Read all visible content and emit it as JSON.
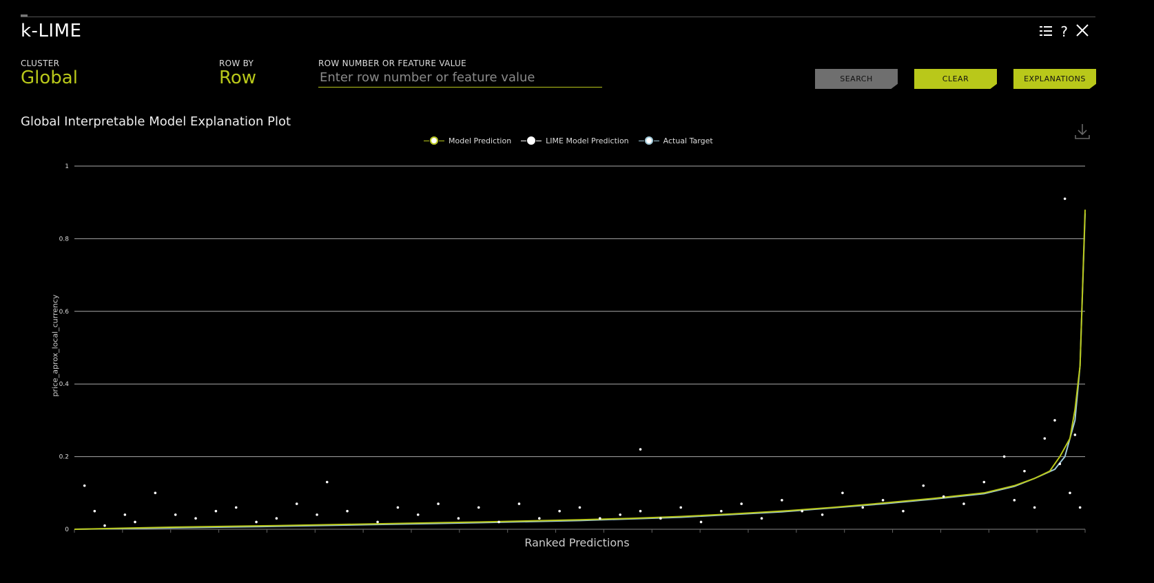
{
  "app": {
    "title": "k-LIME"
  },
  "header_icons": {
    "grid": "grid-icon",
    "help": "help-icon",
    "close": "close-icon"
  },
  "controls": {
    "cluster_label": "CLUSTER",
    "cluster_value": "Global",
    "rowby_label": "ROW BY",
    "rowby_value": "Row",
    "search_label": "ROW NUMBER OR FEATURE VALUE",
    "search_placeholder": "Enter row number or feature value",
    "search_button": "SEARCH",
    "clear_button": "CLEAR",
    "explanations_button": "EXPLANATIONS"
  },
  "plot": {
    "title": "Global Interpretable Model Explanation Plot",
    "download_icon": "download-icon"
  },
  "colors": {
    "accent": "#b9c81a",
    "lime_point": "#ffffff",
    "actual": "#9ec9d9"
  },
  "chart_data": {
    "type": "scatter",
    "title": "Global Interpretable Model Explanation Plot",
    "xlabel": "Ranked Predictions",
    "ylabel": "price_aprox_local_currency",
    "ylim": [
      0,
      1
    ],
    "yticks": [
      "0",
      "0.2",
      "0.4",
      "0.6",
      "0.8",
      "1"
    ],
    "grid": true,
    "legend_position": "top",
    "series": [
      {
        "name": "Model Prediction",
        "color": "#b9c81a",
        "x": [
          0,
          0.05,
          0.1,
          0.2,
          0.3,
          0.4,
          0.5,
          0.55,
          0.6,
          0.65,
          0.7,
          0.75,
          0.8,
          0.85,
          0.9,
          0.93,
          0.95,
          0.965,
          0.975,
          0.985,
          0.99,
          0.995,
          1
        ],
        "y": [
          0.0,
          0.003,
          0.006,
          0.01,
          0.015,
          0.02,
          0.026,
          0.03,
          0.035,
          0.042,
          0.05,
          0.06,
          0.072,
          0.085,
          0.1,
          0.12,
          0.14,
          0.16,
          0.2,
          0.25,
          0.33,
          0.45,
          0.88
        ]
      },
      {
        "name": "LIME Model Prediction",
        "color": "#ffffff",
        "x": [
          0.01,
          0.02,
          0.03,
          0.05,
          0.06,
          0.08,
          0.1,
          0.12,
          0.14,
          0.16,
          0.18,
          0.2,
          0.22,
          0.24,
          0.25,
          0.27,
          0.3,
          0.32,
          0.34,
          0.36,
          0.38,
          0.4,
          0.42,
          0.44,
          0.46,
          0.48,
          0.5,
          0.52,
          0.54,
          0.56,
          0.56,
          0.58,
          0.6,
          0.62,
          0.64,
          0.66,
          0.68,
          0.7,
          0.72,
          0.74,
          0.76,
          0.78,
          0.8,
          0.82,
          0.84,
          0.86,
          0.88,
          0.9,
          0.92,
          0.93,
          0.94,
          0.95,
          0.96,
          0.97,
          0.975,
          0.98,
          0.985,
          0.99,
          0.995
        ],
        "y": [
          0.12,
          0.05,
          0.01,
          0.04,
          0.02,
          0.1,
          0.04,
          0.03,
          0.05,
          0.06,
          0.02,
          0.03,
          0.07,
          0.04,
          0.13,
          0.05,
          0.02,
          0.06,
          0.04,
          0.07,
          0.03,
          0.06,
          0.02,
          0.07,
          0.03,
          0.05,
          0.06,
          0.03,
          0.04,
          0.22,
          0.05,
          0.03,
          0.06,
          0.02,
          0.05,
          0.07,
          0.03,
          0.08,
          0.05,
          0.04,
          0.1,
          0.06,
          0.08,
          0.05,
          0.12,
          0.09,
          0.07,
          0.13,
          0.2,
          0.08,
          0.16,
          0.06,
          0.25,
          0.3,
          0.18,
          0.91,
          0.1,
          0.26,
          0.06
        ]
      },
      {
        "name": "Actual Target",
        "color": "#9ec9d9",
        "x": [
          0,
          0.1,
          0.2,
          0.3,
          0.4,
          0.5,
          0.6,
          0.7,
          0.8,
          0.85,
          0.9,
          0.93,
          0.95,
          0.97,
          0.98,
          0.99,
          0.995,
          1
        ],
        "y": [
          0.0,
          0.004,
          0.008,
          0.013,
          0.018,
          0.024,
          0.033,
          0.048,
          0.07,
          0.083,
          0.098,
          0.118,
          0.14,
          0.165,
          0.2,
          0.3,
          0.45,
          0.87
        ]
      }
    ]
  }
}
